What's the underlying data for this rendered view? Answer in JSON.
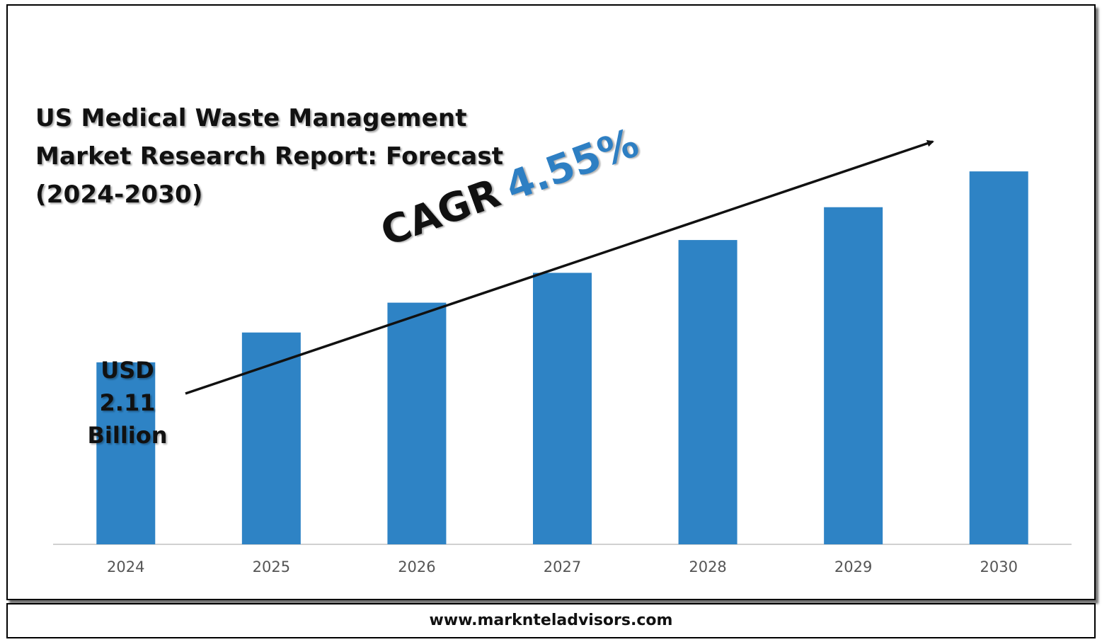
{
  "chart_data": {
    "type": "bar",
    "title_lines": [
      "US Medical Waste Management",
      "Market Research Report: Forecast",
      "(2024-2030)"
    ],
    "categories": [
      "2024",
      "2025",
      "2026",
      "2027",
      "2028",
      "2029",
      "2030"
    ],
    "values": [
      2.11,
      2.21,
      2.31,
      2.41,
      2.52,
      2.63,
      2.75
    ],
    "ylim": [
      1.5,
      2.85
    ],
    "bar_color": "#2e83c5",
    "start_label": {
      "line1": "USD",
      "line2": "2.11",
      "line3": "Billion"
    },
    "cagr": {
      "label": "CAGR",
      "value": "4.55%",
      "value_color": "#2e7fc3"
    },
    "trend_arrow": true,
    "grid": false
  },
  "footer": {
    "website": "www.marknteladvisors.com"
  }
}
